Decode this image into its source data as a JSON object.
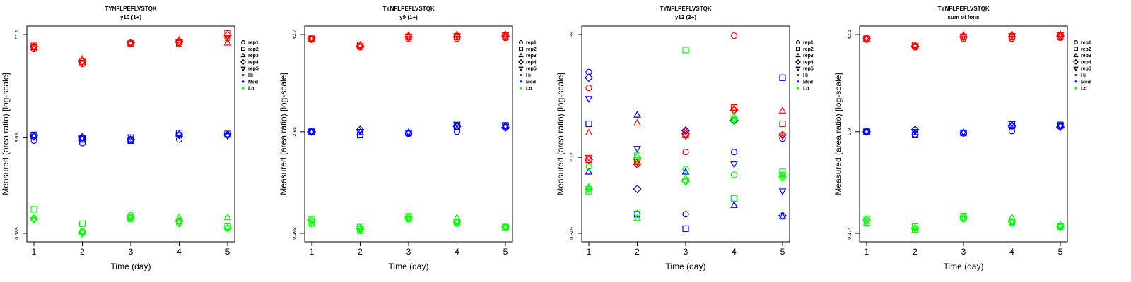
{
  "colors": {
    "Hi": "#ff0000",
    "Med": "#0000ff",
    "Lo": "#00ff00",
    "axis": "#000000"
  },
  "legend": {
    "items": [
      {
        "label": "rep1",
        "shape": "circle"
      },
      {
        "label": "rep2",
        "shape": "square"
      },
      {
        "label": "rep3",
        "shape": "triangle-up"
      },
      {
        "label": "rep4",
        "shape": "diamond"
      },
      {
        "label": "rep5",
        "shape": "triangle-down"
      },
      {
        "label": "Hi",
        "shape": "dot",
        "color": "Hi"
      },
      {
        "label": "Med",
        "shape": "dot",
        "color": "Med"
      },
      {
        "label": "Lo",
        "shape": "dot",
        "color": "Lo"
      }
    ]
  },
  "chart_data": [
    {
      "type": "scatter",
      "title": "TYNFLPEFLVSTQK",
      "subtitle": "y10 (1+)",
      "xlabel": "Time (day)",
      "ylabel": "Measured (area ratio) [log-scale]",
      "x_ticks": [
        "1",
        "2",
        "3",
        "4",
        "5"
      ],
      "y_ticks": [
        "0.189",
        "3.03",
        "61.1"
      ],
      "y_scale": "log",
      "ylim": [
        0.189,
        61.1
      ],
      "reps": [
        "rep1",
        "rep2",
        "rep3",
        "rep4",
        "rep5"
      ],
      "levels": [
        "Hi",
        "Med",
        "Lo"
      ],
      "series": [
        {
          "level": "Hi",
          "rep": "rep1",
          "values": [
            40,
            26,
            48,
            48,
            55
          ]
        },
        {
          "level": "Hi",
          "rep": "rep2",
          "values": [
            44,
            28,
            47,
            47,
            63
          ]
        },
        {
          "level": "Hi",
          "rep": "rep3",
          "values": [
            42,
            30,
            48,
            52,
            48
          ]
        },
        {
          "level": "Hi",
          "rep": "rep4",
          "values": [
            43,
            28,
            48,
            50,
            60
          ]
        },
        {
          "level": "Hi",
          "rep": "rep5",
          "values": [
            42,
            27,
            47,
            49,
            56
          ]
        },
        {
          "level": "Med",
          "rep": "rep1",
          "values": [
            2.8,
            2.6,
            2.8,
            2.9,
            3.3
          ]
        },
        {
          "level": "Med",
          "rep": "rep2",
          "values": [
            3.3,
            2.9,
            2.8,
            3.5,
            3.4
          ]
        },
        {
          "level": "Med",
          "rep": "rep3",
          "values": [
            3.2,
            3.0,
            2.9,
            3.4,
            3.3
          ]
        },
        {
          "level": "Med",
          "rep": "rep4",
          "values": [
            3.2,
            3.1,
            2.9,
            3.3,
            3.3
          ]
        },
        {
          "level": "Med",
          "rep": "rep5",
          "values": [
            3.1,
            3.0,
            3.1,
            3.3,
            3.2
          ]
        },
        {
          "level": "Lo",
          "rep": "rep1",
          "values": [
            0.29,
            0.2,
            0.32,
            0.25,
            0.22
          ]
        },
        {
          "level": "Lo",
          "rep": "rep2",
          "values": [
            0.38,
            0.25,
            0.29,
            0.27,
            0.23
          ]
        },
        {
          "level": "Lo",
          "rep": "rep3",
          "values": [
            0.29,
            0.2,
            0.3,
            0.3,
            0.3
          ]
        },
        {
          "level": "Lo",
          "rep": "rep4",
          "values": [
            0.29,
            0.19,
            0.3,
            0.27,
            0.22
          ]
        },
        {
          "level": "Lo",
          "rep": "rep5",
          "values": [
            0.28,
            0.19,
            0.3,
            0.26,
            0.22
          ]
        }
      ]
    },
    {
      "type": "scatter",
      "title": "TYNFLPEFLVSTQK",
      "subtitle": "y9 (1+)",
      "xlabel": "Time (day)",
      "ylabel": "Measured (area ratio) [log-scale]",
      "x_ticks": [
        "1",
        "2",
        "3",
        "4",
        "5"
      ],
      "y_ticks": [
        "0.168",
        "2.85",
        "42.7"
      ],
      "y_scale": "log",
      "ylim": [
        0.168,
        42.7
      ],
      "reps": [
        "rep1",
        "rep2",
        "rep3",
        "rep4",
        "rep5"
      ],
      "levels": [
        "Hi",
        "Med",
        "Lo"
      ],
      "series": [
        {
          "level": "Hi",
          "rep": "rep1",
          "values": [
            37,
            30,
            38,
            38,
            39
          ]
        },
        {
          "level": "Hi",
          "rep": "rep2",
          "values": [
            38,
            32,
            40,
            40,
            40
          ]
        },
        {
          "level": "Hi",
          "rep": "rep3",
          "values": [
            38,
            32,
            42,
            43,
            43
          ]
        },
        {
          "level": "Hi",
          "rep": "rep4",
          "values": [
            38,
            31,
            40,
            40,
            41
          ]
        },
        {
          "level": "Hi",
          "rep": "rep5",
          "values": [
            38,
            31,
            40,
            41,
            42
          ]
        },
        {
          "level": "Med",
          "rep": "rep1",
          "values": [
            2.85,
            2.6,
            2.7,
            2.85,
            3.3
          ]
        },
        {
          "level": "Med",
          "rep": "rep2",
          "values": [
            2.85,
            2.6,
            2.75,
            3.3,
            3.4
          ]
        },
        {
          "level": "Med",
          "rep": "rep3",
          "values": [
            2.85,
            2.8,
            2.8,
            3.4,
            3.3
          ]
        },
        {
          "level": "Med",
          "rep": "rep4",
          "values": [
            2.85,
            3.0,
            2.75,
            3.3,
            3.2
          ]
        },
        {
          "level": "Med",
          "rep": "rep5",
          "values": [
            2.85,
            2.85,
            2.8,
            3.5,
            3.3
          ]
        },
        {
          "level": "Lo",
          "rep": "rep1",
          "values": [
            0.22,
            0.18,
            0.25,
            0.22,
            0.2
          ]
        },
        {
          "level": "Lo",
          "rep": "rep2",
          "values": [
            0.25,
            0.2,
            0.27,
            0.23,
            0.2
          ]
        },
        {
          "level": "Lo",
          "rep": "rep3",
          "values": [
            0.22,
            0.18,
            0.25,
            0.26,
            0.2
          ]
        },
        {
          "level": "Lo",
          "rep": "rep4",
          "values": [
            0.24,
            0.19,
            0.26,
            0.23,
            0.2
          ]
        },
        {
          "level": "Lo",
          "rep": "rep5",
          "values": [
            0.23,
            0.19,
            0.25,
            0.23,
            0.2
          ]
        }
      ]
    },
    {
      "type": "scatter",
      "title": "TYNFLPEFLVSTQK",
      "subtitle": "y12 (2+)",
      "xlabel": "Time (day)",
      "ylabel": "Measured (area ratio) [log-scale]",
      "x_ticks": [
        "1",
        "2",
        "3",
        "4",
        "5"
      ],
      "y_ticks": [
        "0.349",
        "2.12",
        "39"
      ],
      "y_scale": "log",
      "ylim": [
        0.349,
        39
      ],
      "reps": [
        "rep1",
        "rep2",
        "rep3",
        "rep4",
        "rep5"
      ],
      "levels": [
        "Hi",
        "Med",
        "Lo"
      ],
      "series": [
        {
          "level": "Hi",
          "rep": "rep1",
          "values": [
            11,
            1.8,
            2.4,
            38,
            3.6
          ]
        },
        {
          "level": "Hi",
          "rep": "rep2",
          "values": [
            2.0,
            1.9,
            3.6,
            6.9,
            4.7
          ]
        },
        {
          "level": "Hi",
          "rep": "rep3",
          "values": [
            3.8,
            4.8,
            4.0,
            6.7,
            6.4
          ]
        },
        {
          "level": "Hi",
          "rep": "rep4",
          "values": [
            2.0,
            1.8,
            3.7,
            6.5,
            3.6
          ]
        },
        {
          "level": "Hi",
          "rep": "rep5",
          "values": [
            2.1,
            1.9,
            3.5,
            6.3,
            3.5
          ]
        },
        {
          "level": "Med",
          "rep": "rep1",
          "values": [
            16,
            0.55,
            0.55,
            2.4,
            3.3
          ]
        },
        {
          "level": "Med",
          "rep": "rep2",
          "values": [
            4.7,
            0.55,
            0.39,
            0.8,
            14
          ]
        },
        {
          "level": "Med",
          "rep": "rep3",
          "values": [
            1.5,
            5.8,
            1.5,
            0.68,
            0.52
          ]
        },
        {
          "level": "Med",
          "rep": "rep4",
          "values": [
            14,
            1.0,
            4.0,
            5.1,
            0.53
          ]
        },
        {
          "level": "Med",
          "rep": "rep5",
          "values": [
            8.5,
            2.6,
            1.2,
            1.8,
            0.95
          ]
        },
        {
          "level": "Lo",
          "rep": "rep1",
          "values": [
            1.7,
            0.56,
            1.6,
            1.4,
            1.3
          ]
        },
        {
          "level": "Lo",
          "rep": "rep2",
          "values": [
            0.95,
            2.2,
            27,
            0.8,
            1.5
          ]
        },
        {
          "level": "Lo",
          "rep": "rep3",
          "values": [
            1.05,
            0.5,
            1.3,
            5.6,
            1.4
          ]
        },
        {
          "level": "Lo",
          "rep": "rep4",
          "values": [
            1.0,
            2.1,
            1.2,
            5.0,
            1.35
          ]
        },
        {
          "level": "Lo",
          "rep": "rep5",
          "values": [
            1.0,
            2.0,
            1.2,
            5.2,
            1.4
          ]
        }
      ]
    },
    {
      "type": "scatter",
      "title": "TYNFLPEFLVSTQK",
      "subtitle": "sum of Ions",
      "xlabel": "Time (day)",
      "ylabel": "Measured (area ratio) [log-scale]",
      "x_ticks": [
        "1",
        "2",
        "3",
        "4",
        "5"
      ],
      "y_ticks": [
        "0.174",
        "2.9",
        "42.6"
      ],
      "y_scale": "log",
      "ylim": [
        0.174,
        42.6
      ],
      "reps": [
        "rep1",
        "rep2",
        "rep3",
        "rep4",
        "rep5"
      ],
      "levels": [
        "Hi",
        "Med",
        "Lo"
      ],
      "series": [
        {
          "level": "Hi",
          "rep": "rep1",
          "values": [
            37,
            30,
            38,
            38,
            39
          ]
        },
        {
          "level": "Hi",
          "rep": "rep2",
          "values": [
            38,
            32,
            40,
            40,
            40
          ]
        },
        {
          "level": "Hi",
          "rep": "rep3",
          "values": [
            38,
            32,
            42,
            43,
            43
          ]
        },
        {
          "level": "Hi",
          "rep": "rep4",
          "values": [
            38,
            31,
            40,
            40,
            41
          ]
        },
        {
          "level": "Hi",
          "rep": "rep5",
          "values": [
            38,
            31,
            40,
            41,
            42
          ]
        },
        {
          "level": "Med",
          "rep": "rep1",
          "values": [
            2.9,
            2.7,
            2.8,
            2.95,
            3.4
          ]
        },
        {
          "level": "Med",
          "rep": "rep2",
          "values": [
            2.9,
            2.65,
            2.8,
            3.4,
            3.5
          ]
        },
        {
          "level": "Med",
          "rep": "rep3",
          "values": [
            2.9,
            2.85,
            2.85,
            3.5,
            3.4
          ]
        },
        {
          "level": "Med",
          "rep": "rep4",
          "values": [
            2.9,
            3.05,
            2.8,
            3.4,
            3.3
          ]
        },
        {
          "level": "Med",
          "rep": "rep5",
          "values": [
            2.9,
            2.9,
            2.85,
            3.6,
            3.4
          ]
        },
        {
          "level": "Lo",
          "rep": "rep1",
          "values": [
            0.23,
            0.19,
            0.26,
            0.23,
            0.21
          ]
        },
        {
          "level": "Lo",
          "rep": "rep2",
          "values": [
            0.26,
            0.21,
            0.28,
            0.24,
            0.21
          ]
        },
        {
          "level": "Lo",
          "rep": "rep3",
          "values": [
            0.23,
            0.19,
            0.26,
            0.27,
            0.22
          ]
        },
        {
          "level": "Lo",
          "rep": "rep4",
          "values": [
            0.25,
            0.2,
            0.27,
            0.24,
            0.21
          ]
        },
        {
          "level": "Lo",
          "rep": "rep5",
          "values": [
            0.24,
            0.2,
            0.26,
            0.24,
            0.21
          ]
        }
      ]
    }
  ]
}
